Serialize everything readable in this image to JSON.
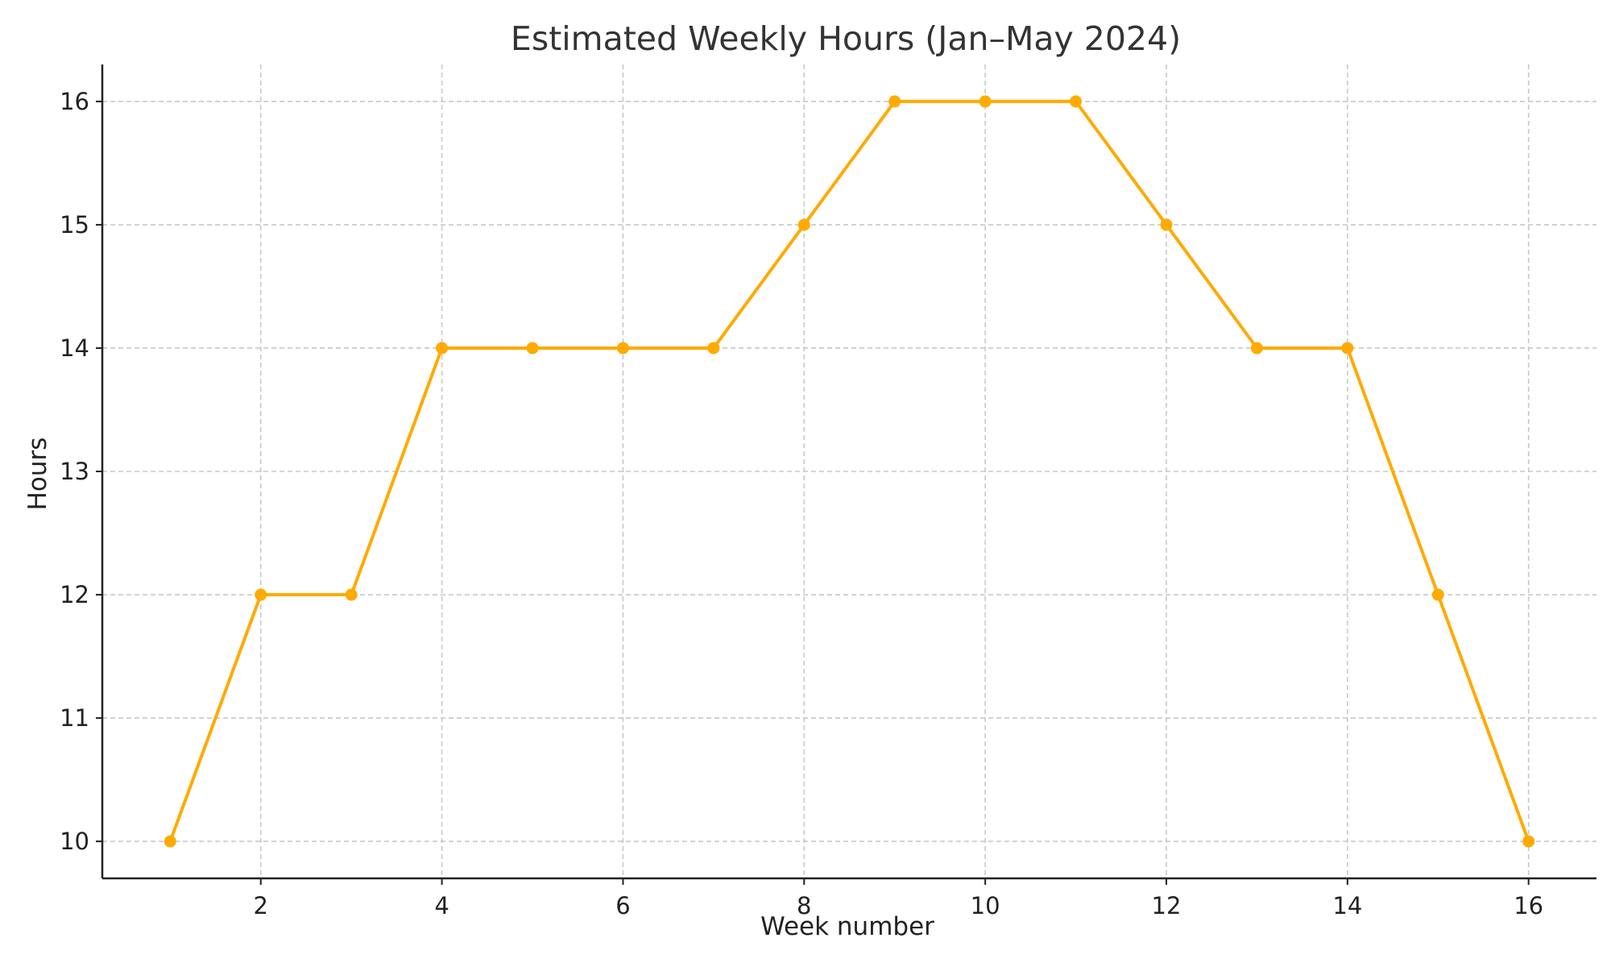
{
  "chart_data": {
    "type": "line",
    "title": "Estimated Weekly Hours (Jan–May 2024)",
    "xlabel": "Week number",
    "ylabel": "Hours",
    "x": [
      1,
      2,
      3,
      4,
      5,
      6,
      7,
      8,
      9,
      10,
      11,
      12,
      13,
      14,
      15,
      16
    ],
    "series": [
      {
        "values": [
          10,
          12,
          12,
          14,
          14,
          14,
          14,
          15,
          16,
          16,
          16,
          15,
          14,
          14,
          12,
          10
        ],
        "color": "#FFAA00",
        "marker": "circle"
      }
    ],
    "xlim": [
      0.25,
      16.75
    ],
    "ylim": [
      9.7,
      16.3
    ],
    "xticks": [
      2,
      4,
      6,
      8,
      10,
      12,
      14,
      16
    ],
    "yticks": [
      10,
      11,
      12,
      13,
      14,
      15,
      16
    ],
    "grid": true,
    "legend": "none"
  }
}
